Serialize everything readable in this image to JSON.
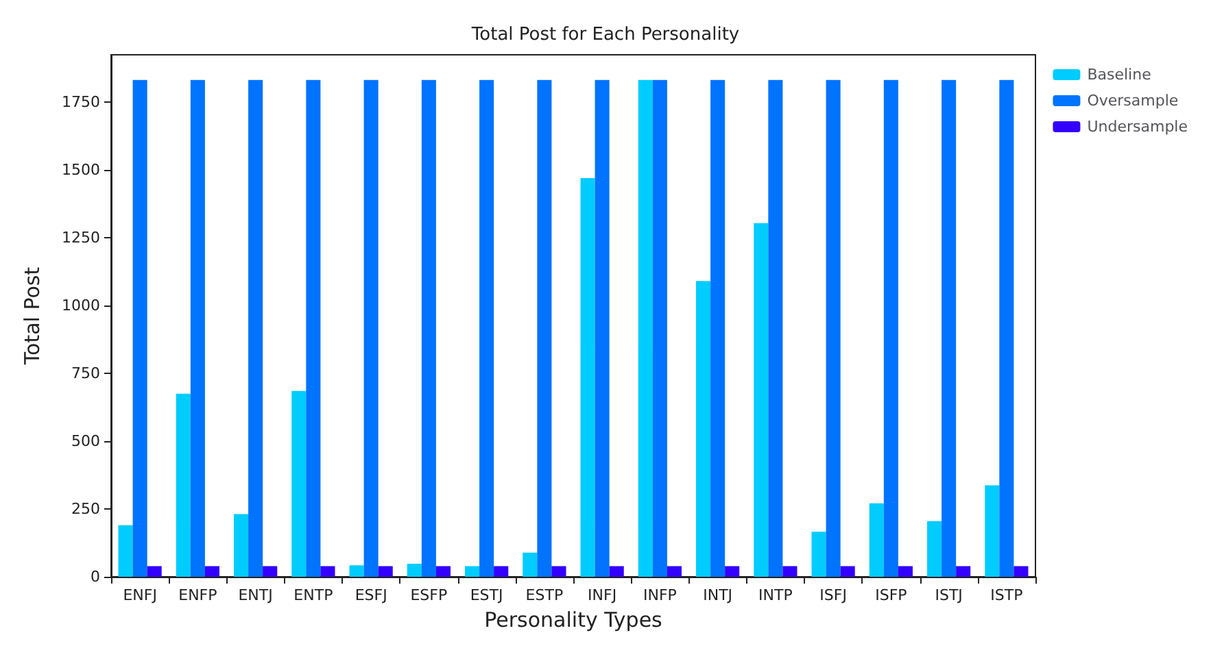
{
  "chart_data": {
    "type": "bar",
    "title": "Total Post for Each Personality",
    "xlabel": "Personality Types",
    "ylabel": "Total Post",
    "categories": [
      "ENFJ",
      "ENFP",
      "ENTJ",
      "ENTP",
      "ESFJ",
      "ESFP",
      "ESTJ",
      "ESTP",
      "INFJ",
      "INFP",
      "INTJ",
      "INTP",
      "ISFJ",
      "ISFP",
      "ISTJ",
      "ISTP"
    ],
    "series": [
      {
        "name": "Baseline",
        "color": "#00ccff",
        "values": [
          190,
          675,
          231,
          685,
          42,
          48,
          39,
          89,
          1470,
          1832,
          1091,
          1304,
          166,
          271,
          205,
          337
        ]
      },
      {
        "name": "Oversample",
        "color": "#0073ff",
        "values": [
          1832,
          1832,
          1832,
          1832,
          1832,
          1832,
          1832,
          1832,
          1832,
          1832,
          1832,
          1832,
          1832,
          1832,
          1832,
          1832
        ]
      },
      {
        "name": "Undersample",
        "color": "#3300ff",
        "values": [
          39,
          39,
          39,
          39,
          39,
          39,
          39,
          39,
          39,
          39,
          39,
          39,
          39,
          39,
          39,
          39
        ]
      }
    ],
    "ylim": [
      0,
      1925
    ],
    "yticks": [
      0,
      250,
      500,
      750,
      1000,
      1250,
      1500,
      1750
    ],
    "grid": false,
    "legend": "top right"
  }
}
